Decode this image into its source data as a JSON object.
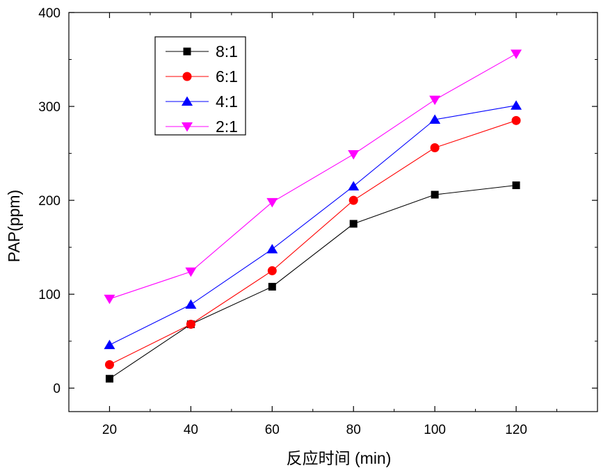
{
  "chart_data": {
    "type": "line",
    "title": "",
    "xlabel": "反应时间 (min)",
    "ylabel": "PAP(ppm)",
    "x": [
      20,
      40,
      60,
      80,
      100,
      120
    ],
    "xticks": [
      "20",
      "40",
      "60",
      "80",
      "100",
      "120"
    ],
    "xlim": [
      10,
      140
    ],
    "yticks": [
      "0",
      "100",
      "200",
      "300",
      "400"
    ],
    "ylim": [
      -25,
      400
    ],
    "grid": false,
    "legend_position": "top-left",
    "series": [
      {
        "name": "8:1",
        "color": "#000000",
        "marker": "square",
        "values": [
          10,
          68,
          108,
          175,
          206,
          216
        ]
      },
      {
        "name": "6:1",
        "color": "#ff0000",
        "marker": "circle",
        "values": [
          25,
          68,
          125,
          200,
          256,
          285
        ]
      },
      {
        "name": "4:1",
        "color": "#0000ff",
        "marker": "triangle-up",
        "values": [
          46,
          89,
          148,
          215,
          286,
          301
        ]
      },
      {
        "name": "2:1",
        "color": "#ff00ff",
        "marker": "triangle-down",
        "values": [
          95,
          124,
          198,
          249,
          307,
          356
        ]
      }
    ]
  }
}
